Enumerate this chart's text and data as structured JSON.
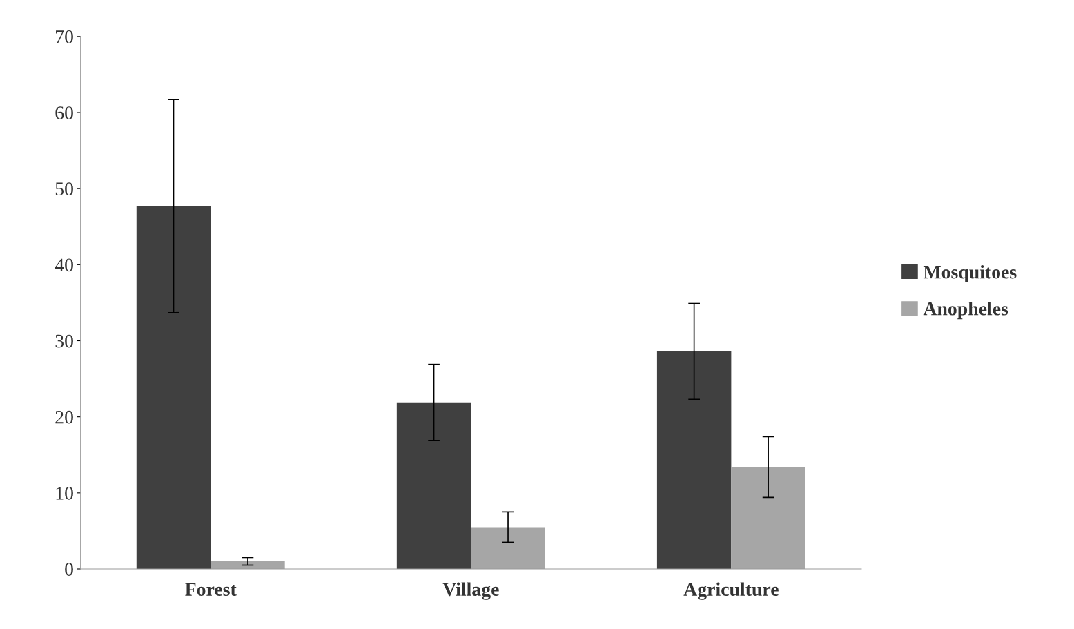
{
  "chart_data": {
    "type": "bar",
    "categories": [
      "Forest",
      "Village",
      "Agriculture"
    ],
    "series": [
      {
        "name": "Mosquitoes",
        "color": "#404040",
        "values": [
          47.7,
          21.9,
          28.6
        ],
        "errors": [
          14,
          5,
          6.3
        ]
      },
      {
        "name": "Anopheles",
        "color": "#a6a6a6",
        "values": [
          1.0,
          5.5,
          13.4
        ],
        "errors": [
          0.5,
          2,
          4
        ]
      }
    ],
    "ylim": [
      0,
      70
    ],
    "yticks": [
      0,
      10,
      20,
      30,
      40,
      50,
      60,
      70
    ],
    "grid": false,
    "legend": "right"
  }
}
